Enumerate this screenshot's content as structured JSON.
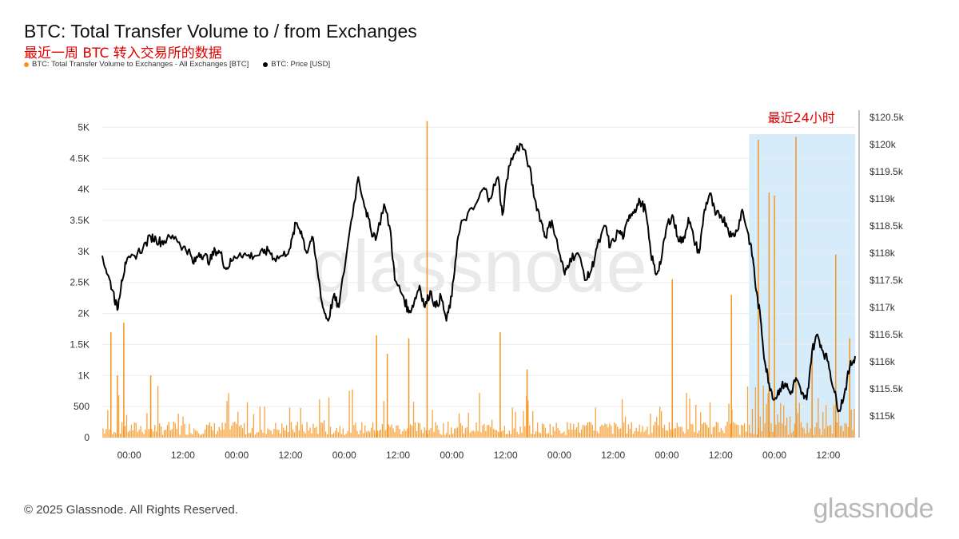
{
  "header": {
    "title": "BTC: Total Transfer Volume to / from Exchanges",
    "subtitle": "最近一周 BTC 转入交易所的数据"
  },
  "legend": [
    {
      "label": "BTC: Total Transfer Volume to Exchanges - All Exchanges [BTC]",
      "color": "#f7931a"
    },
    {
      "label": "BTC: Price [USD]",
      "color": "#000000"
    }
  ],
  "highlight": {
    "label": "最近24小时",
    "color": "#d6ecfb",
    "from": 6.0,
    "to": 7.0
  },
  "watermark": "glassnode",
  "footer": {
    "copyright": "© 2025 Glassnode. All Rights Reserved.",
    "brand": "glassnode"
  },
  "chart_data": {
    "type": "bar+line",
    "x_ticks": [
      "00:00",
      "12:00",
      "00:00",
      "12:00",
      "00:00",
      "12:00",
      "00:00",
      "12:00",
      "00:00",
      "12:00",
      "00:00",
      "12:00",
      "00:00",
      "12:00"
    ],
    "x_tick_days": [
      0.25,
      0.75,
      1.25,
      1.75,
      2.25,
      2.75,
      3.25,
      3.75,
      4.25,
      4.75,
      5.25,
      5.75,
      6.25,
      6.75
    ],
    "x_range_days": [
      0,
      7.0
    ],
    "y_left": {
      "label": "",
      "ticks": [
        0,
        500,
        1000,
        1500,
        2000,
        2500,
        3000,
        3500,
        4000,
        4500,
        5000
      ],
      "tick_labels": [
        "0",
        "500",
        "1K",
        "1.5K",
        "2K",
        "2.5K",
        "3K",
        "3.5K",
        "4K",
        "4.5K",
        "5K"
      ],
      "range": [
        0,
        5250
      ]
    },
    "y_right": {
      "label": "",
      "ticks": [
        115000,
        115500,
        116000,
        116500,
        117000,
        117500,
        118000,
        118500,
        119000,
        119500,
        120000,
        120500
      ],
      "tick_labels": [
        "$115k",
        "$115.5k",
        "$116k",
        "$116.5k",
        "$117k",
        "$117.5k",
        "$118k",
        "$118.5k",
        "$119k",
        "$119.5k",
        "$120k",
        "$120.5k"
      ],
      "range": [
        114600,
        120600
      ]
    },
    "series": [
      {
        "name": "BTC: Total Transfer Volume to Exchanges - All Exchanges [BTC]",
        "axis": "left",
        "type": "bar",
        "notable_spikes": [
          {
            "day": 0.08,
            "value": 1700
          },
          {
            "day": 0.14,
            "value": 1000
          },
          {
            "day": 0.2,
            "value": 1850
          },
          {
            "day": 0.45,
            "value": 1000
          },
          {
            "day": 2.55,
            "value": 1650
          },
          {
            "day": 2.65,
            "value": 1350
          },
          {
            "day": 2.85,
            "value": 1600
          },
          {
            "day": 3.02,
            "value": 5100
          },
          {
            "day": 3.7,
            "value": 1700
          },
          {
            "day": 3.95,
            "value": 1100
          },
          {
            "day": 5.3,
            "value": 2550
          },
          {
            "day": 5.85,
            "value": 2300
          },
          {
            "day": 6.1,
            "value": 4800
          },
          {
            "day": 6.2,
            "value": 3950
          },
          {
            "day": 6.25,
            "value": 3900
          },
          {
            "day": 6.45,
            "value": 4850
          },
          {
            "day": 6.6,
            "value": 1400
          },
          {
            "day": 6.82,
            "value": 2950
          },
          {
            "day": 6.95,
            "value": 1600
          }
        ]
      },
      {
        "name": "BTC: Price [USD]",
        "axis": "right",
        "type": "line",
        "points": [
          [
            0.0,
            117950
          ],
          [
            0.05,
            117600
          ],
          [
            0.1,
            117300
          ],
          [
            0.14,
            116950
          ],
          [
            0.18,
            117500
          ],
          [
            0.22,
            117800
          ],
          [
            0.3,
            117950
          ],
          [
            0.38,
            118100
          ],
          [
            0.45,
            118300
          ],
          [
            0.5,
            118250
          ],
          [
            0.55,
            118200
          ],
          [
            0.6,
            118250
          ],
          [
            0.68,
            118300
          ],
          [
            0.75,
            118100
          ],
          [
            0.8,
            118050
          ],
          [
            0.85,
            117800
          ],
          [
            0.9,
            118000
          ],
          [
            0.95,
            117950
          ],
          [
            1.0,
            117850
          ],
          [
            1.05,
            118050
          ],
          [
            1.1,
            118000
          ],
          [
            1.15,
            117700
          ],
          [
            1.2,
            117850
          ],
          [
            1.28,
            118000
          ],
          [
            1.35,
            117950
          ],
          [
            1.42,
            117950
          ],
          [
            1.5,
            118000
          ],
          [
            1.55,
            118050
          ],
          [
            1.6,
            117900
          ],
          [
            1.68,
            117950
          ],
          [
            1.75,
            118100
          ],
          [
            1.8,
            118550
          ],
          [
            1.85,
            118400
          ],
          [
            1.9,
            118000
          ],
          [
            1.95,
            118300
          ],
          [
            2.0,
            117700
          ],
          [
            2.05,
            117000
          ],
          [
            2.1,
            116750
          ],
          [
            2.15,
            117200
          ],
          [
            2.2,
            117000
          ],
          [
            2.3,
            118400
          ],
          [
            2.38,
            119400
          ],
          [
            2.45,
            118800
          ],
          [
            2.5,
            118400
          ],
          [
            2.55,
            118300
          ],
          [
            2.62,
            118900
          ],
          [
            2.68,
            118400
          ],
          [
            2.72,
            117500
          ],
          [
            2.8,
            117200
          ],
          [
            2.85,
            116900
          ],
          [
            2.9,
            117100
          ],
          [
            2.95,
            117400
          ],
          [
            3.0,
            117000
          ],
          [
            3.05,
            117300
          ],
          [
            3.1,
            117000
          ],
          [
            3.15,
            117200
          ],
          [
            3.2,
            116750
          ],
          [
            3.25,
            117200
          ],
          [
            3.3,
            118200
          ],
          [
            3.35,
            118600
          ],
          [
            3.45,
            118800
          ],
          [
            3.55,
            119200
          ],
          [
            3.6,
            119000
          ],
          [
            3.68,
            119400
          ],
          [
            3.72,
            118700
          ],
          [
            3.78,
            119600
          ],
          [
            3.85,
            119900
          ],
          [
            3.9,
            120000
          ],
          [
            3.97,
            119600
          ],
          [
            4.02,
            119000
          ],
          [
            4.08,
            118600
          ],
          [
            4.12,
            118300
          ],
          [
            4.18,
            118600
          ],
          [
            4.25,
            118000
          ],
          [
            4.3,
            117600
          ],
          [
            4.35,
            117900
          ],
          [
            4.42,
            118000
          ],
          [
            4.5,
            117500
          ],
          [
            4.55,
            117700
          ],
          [
            4.6,
            118100
          ],
          [
            4.68,
            118500
          ],
          [
            4.72,
            118100
          ],
          [
            4.8,
            118400
          ],
          [
            4.85,
            118300
          ],
          [
            4.9,
            118700
          ],
          [
            4.95,
            118800
          ],
          [
            5.0,
            118950
          ],
          [
            5.05,
            118800
          ],
          [
            5.1,
            118000
          ],
          [
            5.15,
            117600
          ],
          [
            5.2,
            117900
          ],
          [
            5.25,
            118500
          ],
          [
            5.3,
            118700
          ],
          [
            5.35,
            118300
          ],
          [
            5.4,
            118200
          ],
          [
            5.45,
            118650
          ],
          [
            5.5,
            118250
          ],
          [
            5.55,
            118000
          ],
          [
            5.6,
            118800
          ],
          [
            5.65,
            119100
          ],
          [
            5.7,
            118700
          ],
          [
            5.75,
            118700
          ],
          [
            5.8,
            118550
          ],
          [
            5.85,
            118300
          ],
          [
            5.9,
            118400
          ],
          [
            5.95,
            118800
          ],
          [
            6.0,
            118400
          ],
          [
            6.05,
            117900
          ],
          [
            6.08,
            117300
          ],
          [
            6.12,
            116800
          ],
          [
            6.16,
            116000
          ],
          [
            6.2,
            115600
          ],
          [
            6.25,
            115300
          ],
          [
            6.3,
            115500
          ],
          [
            6.35,
            115600
          ],
          [
            6.4,
            115400
          ],
          [
            6.45,
            115700
          ],
          [
            6.5,
            115400
          ],
          [
            6.55,
            115300
          ],
          [
            6.6,
            116200
          ],
          [
            6.65,
            116500
          ],
          [
            6.7,
            116200
          ],
          [
            6.75,
            116000
          ],
          [
            6.8,
            115500
          ],
          [
            6.85,
            115100
          ],
          [
            6.9,
            115400
          ],
          [
            6.95,
            115900
          ],
          [
            7.0,
            116100
          ]
        ]
      }
    ],
    "grid": "horizontal",
    "legend_position": "top-left"
  }
}
